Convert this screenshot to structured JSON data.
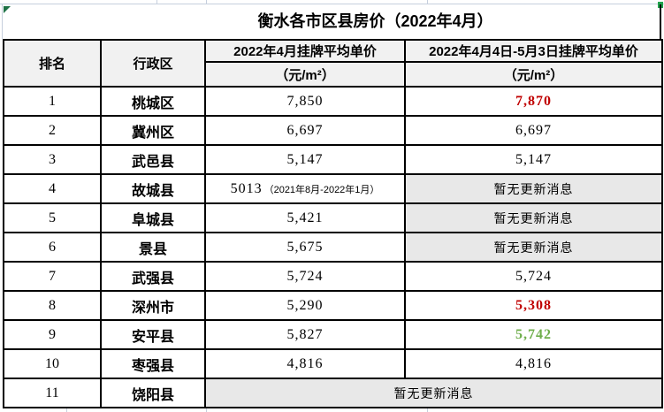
{
  "title": "衡水各市区县房价（2022年4月）",
  "colors": {
    "district_blue": "#2e7bc4",
    "increase_red": "#c00000",
    "decrease_green": "#6fae4b",
    "header_bg": "#f1f1f1",
    "no_update_bg": "#e8e8e8",
    "corner_marker_green": "#1e7145",
    "cell_corner_green": "#21a04c"
  },
  "table": {
    "headers": {
      "rank": "排名",
      "district": "行政区",
      "apr_line1": "2022年4月挂牌平均单价",
      "apr_line2": "（元/m²）",
      "may_line1": "2022年4月4日-5月3日挂牌平均单价",
      "may_line2": "（元/m²）"
    },
    "rows": [
      {
        "rank": "1",
        "district": "桃城区",
        "apr": "7,850",
        "may": "7,870",
        "may_style": "up"
      },
      {
        "rank": "2",
        "district": "冀州区",
        "apr": "6,697",
        "may": "6,697",
        "may_style": "normal"
      },
      {
        "rank": "3",
        "district": "武邑县",
        "apr": "5,147",
        "may": "5,147",
        "may_style": "normal"
      },
      {
        "rank": "4",
        "district": "故城县",
        "apr": "5013",
        "apr_note": "（2021年8月-2022年1月）",
        "may": "暂无更新消息",
        "may_style": "none"
      },
      {
        "rank": "5",
        "district": "阜城县",
        "apr": "5,421",
        "may": "暂无更新消息",
        "may_style": "none"
      },
      {
        "rank": "6",
        "district": "景县",
        "apr": "5,675",
        "may": "暂无更新消息",
        "may_style": "none"
      },
      {
        "rank": "7",
        "district": "武强县",
        "apr": "5,724",
        "may": "5,724",
        "may_style": "normal"
      },
      {
        "rank": "8",
        "district": "深州市",
        "apr": "5,290",
        "may": "5,308",
        "may_style": "up"
      },
      {
        "rank": "9",
        "district": "安平县",
        "apr": "5,827",
        "may": "5,742",
        "may_style": "down"
      },
      {
        "rank": "10",
        "district": "枣强县",
        "apr": "4,816",
        "may": "4,816",
        "may_style": "normal"
      },
      {
        "rank": "11",
        "district": "饶阳县",
        "merged": "暂无更新消息"
      }
    ]
  }
}
